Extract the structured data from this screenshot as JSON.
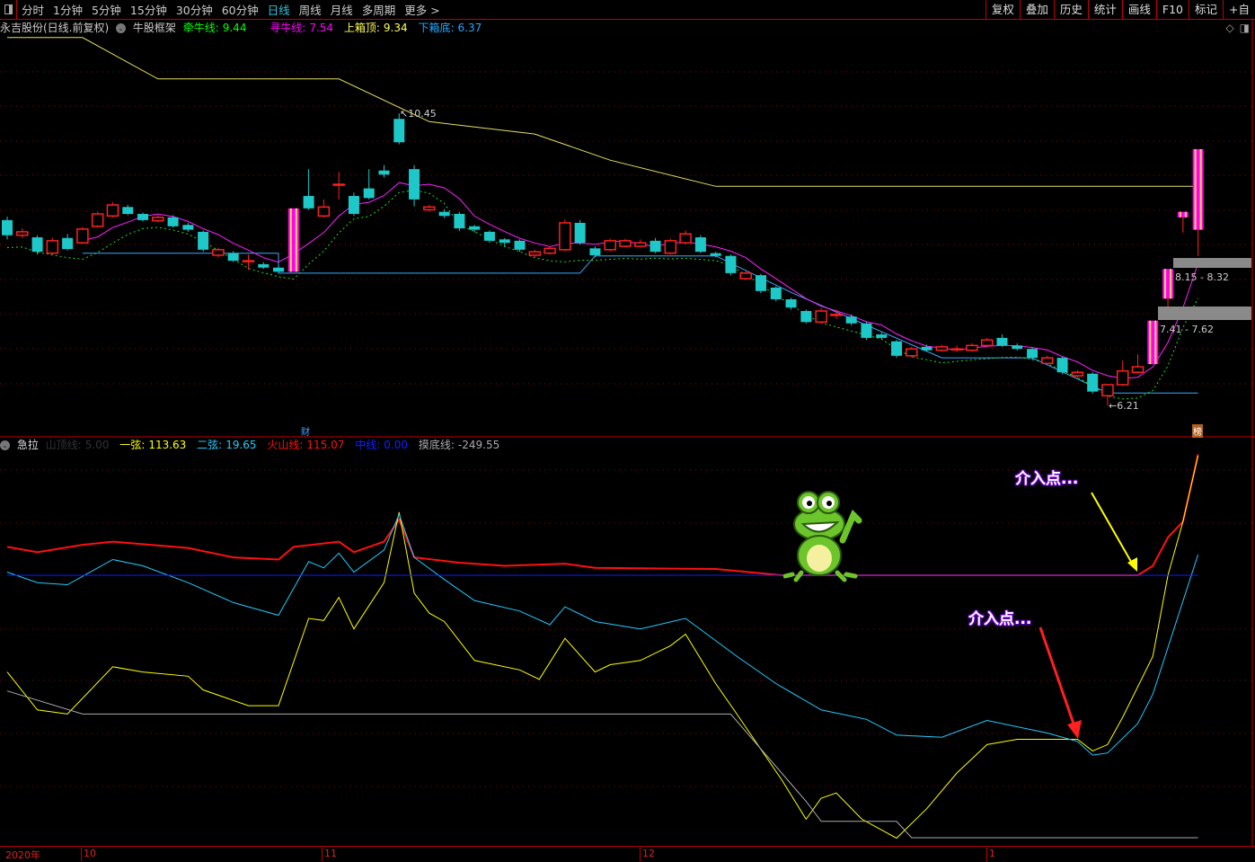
{
  "toolbar": {
    "periods": [
      "分时",
      "1分钟",
      "5分钟",
      "15分钟",
      "30分钟",
      "60分钟",
      "日线",
      "周线",
      "月线",
      "多周期",
      "更多 >"
    ],
    "active_period": "日线",
    "right_buttons": [
      "复权",
      "叠加",
      "历史",
      "统计",
      "画线",
      "F10",
      "标记",
      "+自"
    ]
  },
  "main_legend": {
    "title": "永吉股份(日线.前复权)",
    "indicator": "牛股框架",
    "qianniu": {
      "label": "牵牛线:",
      "value": "9.44",
      "color": "#00ff00"
    },
    "xunniu": {
      "label": "寻牛线:",
      "value": "7.54",
      "color": "#ff00ff"
    },
    "shangxiang": {
      "label": "上箱顶:",
      "value": "9.34",
      "color": "#ffff55"
    },
    "xiaxiang": {
      "label": "下箱底:",
      "value": "6.37",
      "color": "#22aaff"
    }
  },
  "sub_legend": {
    "indicator": "急拉",
    "shanding": {
      "label": "山顶线:",
      "value": "5.00",
      "color": "#333333"
    },
    "yixian": {
      "label": "一弦:",
      "value": "113.63",
      "color": "#ffff00"
    },
    "erxian": {
      "label": "二弦:",
      "value": "19.65",
      "color": "#22ccff"
    },
    "huoshan": {
      "label": "火山线:",
      "value": "115.07",
      "color": "#ff1010"
    },
    "zhongxian": {
      "label": "中线:",
      "value": "0.00",
      "color": "#1020ff"
    },
    "modi": {
      "label": "摸底线:",
      "value": "-249.55",
      "color": "#aaaaaa"
    }
  },
  "price_labels": {
    "high": "10.45",
    "low": "6.21"
  },
  "zones": [
    {
      "label": "8.15 - 8.32"
    },
    {
      "label": "7.41 - 7.62"
    }
  ],
  "markers": {
    "cai": "财",
    "bang": "榜"
  },
  "annotations": [
    "介入点...",
    "介入点..."
  ],
  "x_axis": [
    "2020年",
    "10",
    "11",
    "12",
    "1"
  ],
  "colors": {
    "up": "#ff2020",
    "down": "#1ec8c8",
    "limit_up": "#ff00ff",
    "grid": "#a00000"
  },
  "chart_data": [
    {
      "type": "candlestick",
      "title": "永吉股份(日线.前复权)",
      "ohlc": [
        [
          8.9,
          8.95,
          8.62,
          8.68
        ],
        [
          8.68,
          8.78,
          8.64,
          8.73
        ],
        [
          8.65,
          8.68,
          8.4,
          8.44
        ],
        [
          8.42,
          8.64,
          8.4,
          8.6
        ],
        [
          8.64,
          8.7,
          8.46,
          8.48
        ],
        [
          8.57,
          8.8,
          8.55,
          8.77
        ],
        [
          8.81,
          9.02,
          8.79,
          8.99
        ],
        [
          8.96,
          9.16,
          8.94,
          9.12
        ],
        [
          9.09,
          9.12,
          8.97,
          8.99
        ],
        [
          8.99,
          9.01,
          8.88,
          8.9
        ],
        [
          8.89,
          8.97,
          8.87,
          8.94
        ],
        [
          8.94,
          8.97,
          8.79,
          8.81
        ],
        [
          8.83,
          8.86,
          8.73,
          8.76
        ],
        [
          8.73,
          8.75,
          8.44,
          8.47
        ],
        [
          8.39,
          8.5,
          8.36,
          8.47
        ],
        [
          8.42,
          8.45,
          8.29,
          8.31
        ],
        [
          8.31,
          8.4,
          8.18,
          8.31
        ],
        [
          8.26,
          8.29,
          8.19,
          8.21
        ],
        [
          8.21,
          8.23,
          8.13,
          8.15
        ],
        [
          8.15,
          9.07,
          8.15,
          9.07
        ],
        [
          9.25,
          9.64,
          9.05,
          9.07
        ],
        [
          8.96,
          9.2,
          8.94,
          9.09
        ],
        [
          9.42,
          9.6,
          9.2,
          9.42
        ],
        [
          9.25,
          9.3,
          8.96,
          8.99
        ],
        [
          9.36,
          9.64,
          9.2,
          9.22
        ],
        [
          9.62,
          9.7,
          9.52,
          9.56
        ],
        [
          10.37,
          10.45,
          10.0,
          10.03
        ],
        [
          9.64,
          9.7,
          9.1,
          9.2
        ],
        [
          9.05,
          9.12,
          9.02,
          9.09
        ],
        [
          9.02,
          9.06,
          8.93,
          8.96
        ],
        [
          8.99,
          9.02,
          8.74,
          8.78
        ],
        [
          8.81,
          8.83,
          8.72,
          8.76
        ],
        [
          8.73,
          8.75,
          8.57,
          8.6
        ],
        [
          8.62,
          8.64,
          8.52,
          8.57
        ],
        [
          8.6,
          8.62,
          8.44,
          8.47
        ],
        [
          8.39,
          8.47,
          8.36,
          8.44
        ],
        [
          8.42,
          8.52,
          8.4,
          8.49
        ],
        [
          8.47,
          8.91,
          8.45,
          8.86
        ],
        [
          8.86,
          8.9,
          8.54,
          8.57
        ],
        [
          8.49,
          8.52,
          8.36,
          8.39
        ],
        [
          8.47,
          8.63,
          8.45,
          8.6
        ],
        [
          8.52,
          8.63,
          8.5,
          8.6
        ],
        [
          8.52,
          8.62,
          8.5,
          8.57
        ],
        [
          8.6,
          8.64,
          8.42,
          8.44
        ],
        [
          8.42,
          8.63,
          8.4,
          8.6
        ],
        [
          8.57,
          8.75,
          8.55,
          8.7
        ],
        [
          8.65,
          8.68,
          8.42,
          8.44
        ],
        [
          8.42,
          8.44,
          8.36,
          8.38
        ],
        [
          8.38,
          8.4,
          8.1,
          8.13
        ],
        [
          8.05,
          8.16,
          8.03,
          8.13
        ],
        [
          8.1,
          8.12,
          7.84,
          7.87
        ],
        [
          7.92,
          7.94,
          7.72,
          7.75
        ],
        [
          7.75,
          7.77,
          7.6,
          7.63
        ],
        [
          7.58,
          7.6,
          7.4,
          7.42
        ],
        [
          7.42,
          7.62,
          7.4,
          7.58
        ],
        [
          7.53,
          7.6,
          7.47,
          7.53
        ],
        [
          7.5,
          7.53,
          7.37,
          7.4
        ],
        [
          7.4,
          7.42,
          7.16,
          7.19
        ],
        [
          7.24,
          7.27,
          7.17,
          7.19
        ],
        [
          7.14,
          7.16,
          6.9,
          6.93
        ],
        [
          6.93,
          7.06,
          6.91,
          7.03
        ],
        [
          7.06,
          7.09,
          6.99,
          7.01
        ],
        [
          7.01,
          7.09,
          6.99,
          7.06
        ],
        [
          7.03,
          7.08,
          6.99,
          7.03
        ],
        [
          7.01,
          7.11,
          6.99,
          7.08
        ],
        [
          7.08,
          7.19,
          7.06,
          7.16
        ],
        [
          7.19,
          7.24,
          7.06,
          7.08
        ],
        [
          7.08,
          7.11,
          7.01,
          7.03
        ],
        [
          7.03,
          7.05,
          6.87,
          6.9
        ],
        [
          6.82,
          6.93,
          6.8,
          6.9
        ],
        [
          6.9,
          6.92,
          6.66,
          6.69
        ],
        [
          6.64,
          6.72,
          6.61,
          6.69
        ],
        [
          6.67,
          6.69,
          6.38,
          6.41
        ],
        [
          6.35,
          6.51,
          6.21,
          6.51
        ],
        [
          6.51,
          6.86,
          6.49,
          6.71
        ],
        [
          6.69,
          6.95,
          6.67,
          6.77
        ],
        [
          6.81,
          7.44,
          6.81,
          7.44
        ],
        [
          7.76,
          8.19,
          7.64,
          8.19
        ],
        [
          8.94,
          9.02,
          8.72,
          9.02
        ],
        [
          8.76,
          9.93,
          8.38,
          9.93
        ]
      ],
      "limit_up_days": [
        19,
        76,
        77,
        78,
        79
      ],
      "upper_line": [
        [
          0,
          11.55
        ],
        [
          5,
          11.55
        ],
        [
          10,
          10.95
        ],
        [
          22,
          10.95
        ],
        [
          28,
          10.33
        ],
        [
          35,
          10.15
        ],
        [
          40,
          9.77
        ],
        [
          47,
          9.39
        ],
        [
          79,
          9.39
        ]
      ],
      "box_line": [
        [
          5,
          8.42
        ],
        [
          18,
          8.42
        ],
        [
          18,
          8.13
        ],
        [
          38,
          8.13
        ],
        [
          39,
          8.38
        ],
        [
          47,
          8.38
        ],
        [
          52,
          7.85
        ],
        [
          62,
          6.9
        ],
        [
          68,
          6.9
        ],
        [
          73,
          6.39
        ],
        [
          79,
          6.39
        ]
      ]
    },
    {
      "type": "line",
      "title": "急拉",
      "ylim": [
        -260,
        120
      ],
      "series": [
        {
          "name": "火山线",
          "color": "#ff1010",
          "points": [
            [
              0,
              27
            ],
            [
              2,
              22
            ],
            [
              5,
              29
            ],
            [
              7,
              32
            ],
            [
              12,
              26
            ],
            [
              15,
              17
            ],
            [
              18,
              15
            ],
            [
              19,
              27
            ],
            [
              22,
              32
            ],
            [
              23,
              22
            ],
            [
              25,
              32
            ],
            [
              26,
              53
            ],
            [
              27,
              17
            ],
            [
              30,
              12
            ],
            [
              33,
              9
            ],
            [
              37,
              11
            ],
            [
              39,
              7
            ],
            [
              47,
              6
            ],
            [
              51.4,
              0
            ],
            [
              75,
              0
            ],
            [
              76,
              9
            ],
            [
              77,
              36
            ],
            [
              78,
              51
            ],
            [
              79,
              115.07
            ]
          ]
        },
        {
          "name": "一弦",
          "color": "#ffff00",
          "points": [
            [
              0,
              -92
            ],
            [
              2,
              -128
            ],
            [
              4,
              -132
            ],
            [
              7,
              -87
            ],
            [
              9,
              -92
            ],
            [
              12,
              -96
            ],
            [
              13,
              -109
            ],
            [
              16,
              -124
            ],
            [
              18,
              -124
            ],
            [
              20,
              -41
            ],
            [
              21,
              -43
            ],
            [
              22,
              -21
            ],
            [
              23,
              -51
            ],
            [
              25,
              -7
            ],
            [
              26,
              60
            ],
            [
              27,
              -17
            ],
            [
              28,
              -36
            ],
            [
              29,
              -44
            ],
            [
              31,
              -81
            ],
            [
              34,
              -90
            ],
            [
              35.3,
              -99
            ],
            [
              37,
              -60
            ],
            [
              39,
              -92
            ],
            [
              40,
              -85
            ],
            [
              42,
              -81
            ],
            [
              44,
              -67
            ],
            [
              45,
              -56
            ],
            [
              47,
              -103
            ],
            [
              48.4,
              -132
            ],
            [
              51.4,
              -195
            ],
            [
              53,
              -232
            ],
            [
              54,
              -212
            ],
            [
              55,
              -207
            ],
            [
              56.7,
              -232
            ],
            [
              59,
              -250
            ],
            [
              61,
              -222
            ],
            [
              63,
              -188
            ],
            [
              65,
              -161
            ],
            [
              67,
              -156
            ],
            [
              71,
              -156
            ],
            [
              72,
              -167
            ],
            [
              73,
              -161
            ],
            [
              74,
              -135
            ],
            [
              76,
              -77
            ],
            [
              77,
              0
            ],
            [
              78,
              51
            ],
            [
              79,
              113.63
            ]
          ]
        },
        {
          "name": "二弦",
          "color": "#22ccff",
          "points": [
            [
              0,
              3
            ],
            [
              2,
              -7
            ],
            [
              4,
              -9
            ],
            [
              7,
              15
            ],
            [
              9,
              9
            ],
            [
              12,
              -7
            ],
            [
              15,
              -26
            ],
            [
              18,
              -38
            ],
            [
              20,
              13
            ],
            [
              21,
              7
            ],
            [
              22,
              21
            ],
            [
              23,
              3
            ],
            [
              25,
              24
            ],
            [
              26,
              58
            ],
            [
              27,
              17
            ],
            [
              29,
              -4
            ],
            [
              31,
              -24
            ],
            [
              34,
              -34
            ],
            [
              36,
              -47
            ],
            [
              37,
              -30
            ],
            [
              39,
              -44
            ],
            [
              42,
              -51
            ],
            [
              45,
              -41
            ],
            [
              48.4,
              -77
            ],
            [
              51,
              -103
            ],
            [
              54,
              -128
            ],
            [
              57,
              -137
            ],
            [
              59,
              -152
            ],
            [
              62,
              -154
            ],
            [
              65,
              -138
            ],
            [
              69,
              -150
            ],
            [
              71,
              -158
            ],
            [
              72,
              -171
            ],
            [
              73,
              -169
            ],
            [
              75,
              -141
            ],
            [
              76,
              -113
            ],
            [
              79,
              19.65
            ]
          ]
        },
        {
          "name": "中线",
          "color": "#1020ff",
          "points": [
            [
              0,
              0
            ],
            [
              79,
              0
            ]
          ]
        },
        {
          "name": "摸底线",
          "color": "#aaaaaa",
          "points": [
            [
              0,
              -110
            ],
            [
              5,
              -132
            ],
            [
              48,
              -132
            ],
            [
              53,
              -215
            ],
            [
              54,
              -234
            ],
            [
              59,
              -234
            ],
            [
              60,
              -249.55
            ],
            [
              79,
              -249.55
            ]
          ]
        }
      ]
    }
  ]
}
